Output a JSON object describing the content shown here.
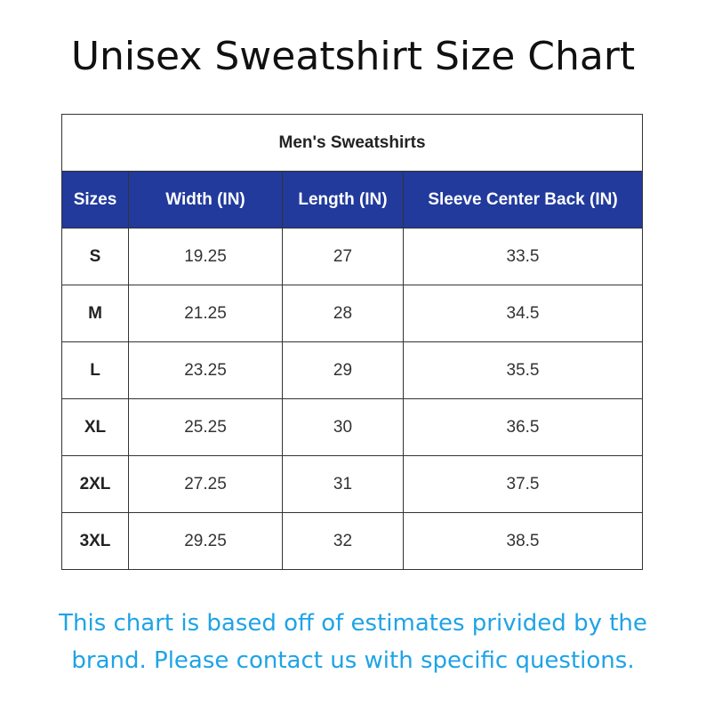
{
  "title": "Unisex Sweatshirt Size Chart",
  "table": {
    "caption": "Men's Sweatshirts",
    "header_color": "#213a9c",
    "columns": [
      "Sizes",
      "Width (IN)",
      "Length (IN)",
      "Sleeve Center Back (IN)"
    ],
    "rows": [
      [
        "S",
        "19.25",
        "27",
        "33.5"
      ],
      [
        "M",
        "21.25",
        "28",
        "34.5"
      ],
      [
        "L",
        "23.25",
        "29",
        "35.5"
      ],
      [
        "XL",
        "25.25",
        "30",
        "36.5"
      ],
      [
        "2XL",
        "27.25",
        "31",
        "37.5"
      ],
      [
        "3XL",
        "29.25",
        "32",
        "38.5"
      ]
    ]
  },
  "note": {
    "line1": "This chart is based off of estimates privided by the",
    "line2": "brand. Please contact us with specific questions.",
    "color": "#1ea3e6"
  }
}
